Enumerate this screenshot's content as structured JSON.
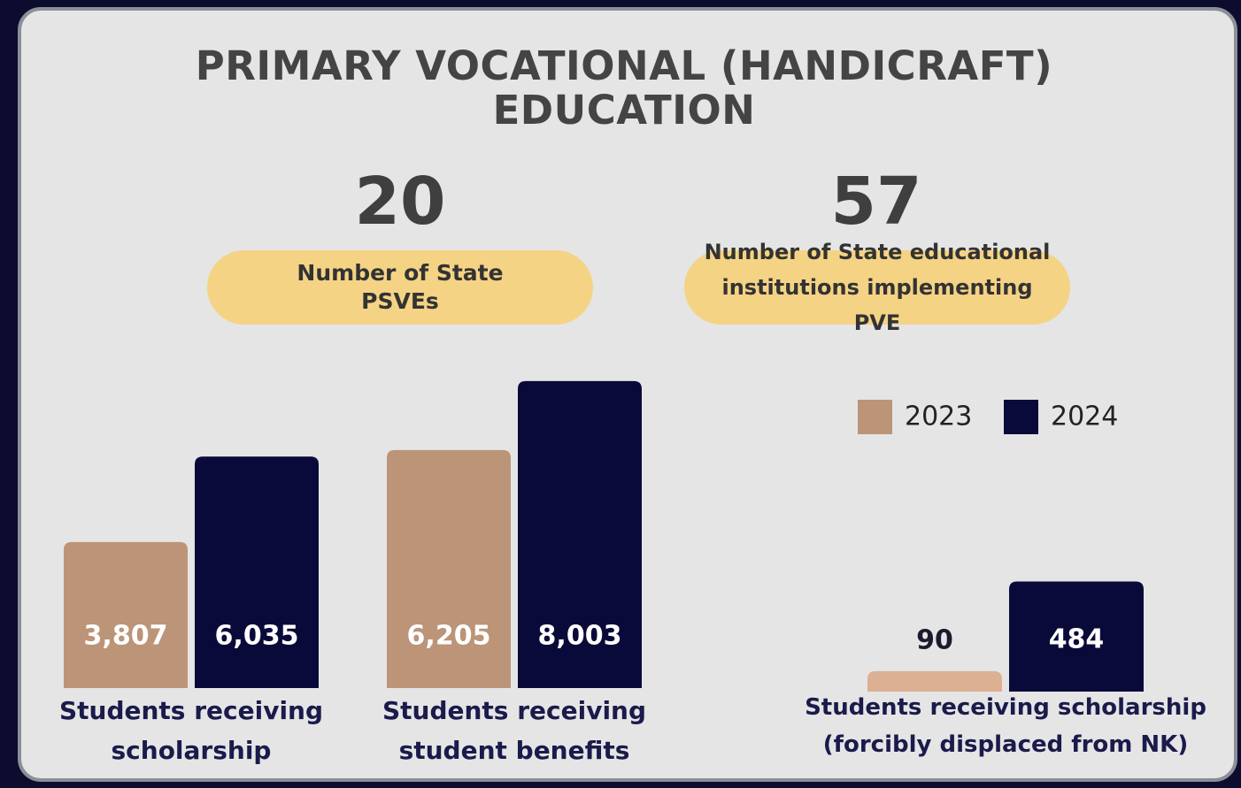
{
  "title": "PRIMARY VOCATIONAL (HANDICRAFT) EDUCATION",
  "stats": [
    {
      "value": 20,
      "label": "Number of State PSVEs"
    },
    {
      "value": 57,
      "label": "Number of State educational institutions implementing PVE"
    }
  ],
  "chart_data": [
    {
      "type": "bar",
      "categories": [
        "Students receiving scholarship"
      ],
      "ylim": [
        0,
        8300
      ],
      "series": [
        {
          "name": "2023",
          "color": "#bc9478",
          "values": [
            3807
          ],
          "value_labels": [
            "3,807"
          ]
        },
        {
          "name": "2024",
          "color": "#0a0a3a",
          "values": [
            6035
          ],
          "value_labels": [
            "6,035"
          ]
        }
      ]
    },
    {
      "type": "bar",
      "categories": [
        "Students receiving student benefits"
      ],
      "ylim": [
        0,
        8300
      ],
      "series": [
        {
          "name": "2023",
          "color": "#bc9478",
          "values": [
            6205
          ],
          "value_labels": [
            "6,205"
          ]
        },
        {
          "name": "2024",
          "color": "#0a0a3a",
          "values": [
            8003
          ],
          "value_labels": [
            "8,003"
          ]
        }
      ]
    },
    {
      "type": "bar",
      "categories": [
        "Students receiving scholarship (forcibly displaced from NK)"
      ],
      "ylim": [
        0,
        1400
      ],
      "legend": "top-right",
      "series": [
        {
          "name": "2023",
          "color": "#dcb093",
          "values": [
            90
          ]
        },
        {
          "name": "2024",
          "color": "#0a0a3a",
          "values": [
            484
          ]
        }
      ]
    }
  ]
}
